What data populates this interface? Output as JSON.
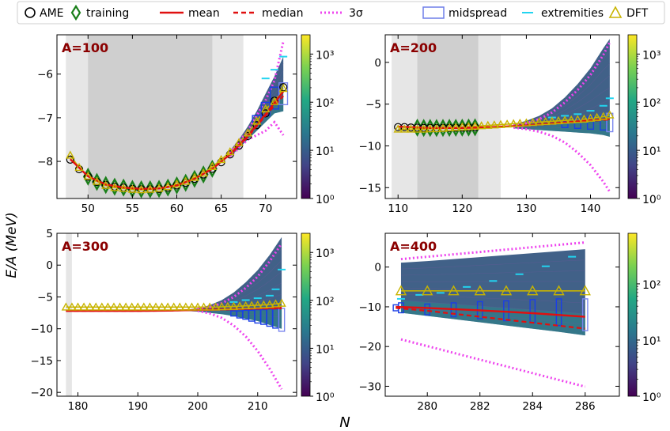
{
  "colors": {
    "ame": "#000000",
    "training": "#1a7f1a",
    "mean": "#e01010",
    "median": "#e01010",
    "sigma3": "#ee44ee",
    "midspread": "#1a3ee6",
    "extremities": "#22d4f0",
    "dft": "#c8b400",
    "panelLabel": "#8b0000"
  },
  "legend": {
    "items": [
      {
        "key": "ame",
        "label": "AME"
      },
      {
        "key": "training",
        "label": "training"
      },
      {
        "key": "mean",
        "label": "mean"
      },
      {
        "key": "median",
        "label": "median"
      },
      {
        "key": "sigma3",
        "label": "3σ"
      },
      {
        "key": "midspread",
        "label": "midspread"
      },
      {
        "key": "extremities",
        "label": "extremities"
      },
      {
        "key": "dft",
        "label": "DFT"
      }
    ]
  },
  "figure": {
    "ylabel": "E/A (MeV)",
    "xlabel": "N"
  },
  "chart_data": [
    {
      "type": "line",
      "label": "A=100",
      "xlim": [
        46.5,
        73.5
      ],
      "ylim": [
        -8.85,
        -5.1
      ],
      "xticks": [
        50,
        55,
        60,
        65,
        70
      ],
      "yticks": [
        -8,
        -7,
        -6
      ],
      "shade_light": [
        47.5,
        67.5
      ],
      "shade_dark": [
        50,
        64
      ],
      "colorbar": {
        "ticks": [
          "10⁰",
          "10¹",
          "10²",
          "10³"
        ],
        "max_exp": 3.4
      },
      "ame": {
        "x": [
          48,
          49,
          50,
          51,
          52,
          53,
          54,
          55,
          56,
          57,
          58,
          59,
          60,
          61,
          62,
          63,
          64,
          65,
          66,
          67,
          68,
          69,
          70,
          71,
          72
        ],
        "y": [
          -7.96,
          -8.18,
          -8.35,
          -8.47,
          -8.54,
          -8.58,
          -8.6,
          -8.63,
          -8.64,
          -8.64,
          -8.63,
          -8.6,
          -8.55,
          -8.49,
          -8.4,
          -8.3,
          -8.17,
          -8.02,
          -7.84,
          -7.64,
          -7.42,
          -7.17,
          -6.9,
          -6.61,
          -6.3
        ]
      },
      "training": {
        "x": [
          50,
          51,
          52,
          53,
          54,
          55,
          56,
          57,
          58,
          59,
          60,
          61,
          62,
          63,
          64
        ],
        "y": [
          -8.35,
          -8.47,
          -8.54,
          -8.58,
          -8.6,
          -8.63,
          -8.64,
          -8.64,
          -8.63,
          -8.6,
          -8.55,
          -8.49,
          -8.4,
          -8.3,
          -8.17
        ]
      },
      "mean": {
        "x": [
          48,
          50,
          52,
          54,
          56,
          58,
          60,
          62,
          64,
          66,
          68,
          70,
          72
        ],
        "y": [
          -7.95,
          -8.34,
          -8.53,
          -8.6,
          -8.63,
          -8.62,
          -8.55,
          -8.4,
          -8.17,
          -7.84,
          -7.42,
          -6.92,
          -6.4
        ]
      },
      "median": {
        "x": [
          48,
          50,
          52,
          54,
          56,
          58,
          60,
          62,
          64,
          66,
          68,
          70,
          72
        ],
        "y": [
          -7.95,
          -8.34,
          -8.53,
          -8.6,
          -8.63,
          -8.62,
          -8.55,
          -8.4,
          -8.17,
          -7.85,
          -7.44,
          -6.95,
          -6.5
        ]
      },
      "sigma_upper": {
        "x": [
          66,
          67,
          68,
          69,
          70,
          71,
          72
        ],
        "y": [
          -7.8,
          -7.55,
          -7.3,
          -6.95,
          -6.6,
          -6.15,
          -5.25
        ]
      },
      "sigma_lower": {
        "x": [
          66,
          67,
          68,
          69,
          70,
          71,
          72
        ],
        "y": [
          -7.88,
          -7.7,
          -7.5,
          -7.4,
          -7.3,
          -7.1,
          -7.4
        ]
      },
      "band": {
        "x": [
          66,
          67,
          68,
          69,
          70,
          71,
          72
        ],
        "upper": [
          -7.75,
          -7.5,
          -7.2,
          -6.85,
          -6.45,
          -6.05,
          -5.6
        ],
        "lower": [
          -7.9,
          -7.7,
          -7.5,
          -7.3,
          -7.1,
          -6.9,
          -6.85
        ]
      },
      "midspread": [
        {
          "x": 69,
          "lo": -7.1,
          "hi": -6.95
        },
        {
          "x": 70,
          "lo": -6.95,
          "hi": -6.65
        },
        {
          "x": 71,
          "lo": -6.8,
          "hi": -6.3
        },
        {
          "x": 72,
          "lo": -6.7,
          "hi": -6.2
        }
      ],
      "extremities": {
        "x": [
          70,
          71,
          72
        ],
        "y": [
          -6.1,
          -5.9,
          -5.6
        ]
      },
      "dft": {
        "x": [
          48,
          49,
          50,
          51,
          52,
          53,
          54,
          55,
          56,
          57,
          58,
          59,
          60,
          61,
          62,
          63,
          64,
          65,
          66,
          67,
          68,
          69,
          70,
          71,
          72
        ],
        "y": [
          -7.86,
          -8.14,
          -8.34,
          -8.46,
          -8.55,
          -8.6,
          -8.62,
          -8.64,
          -8.65,
          -8.64,
          -8.62,
          -8.58,
          -8.52,
          -8.46,
          -8.37,
          -8.27,
          -8.12,
          -7.96,
          -7.78,
          -7.57,
          -7.35,
          -7.08,
          -6.8,
          -6.63,
          -6.33
        ]
      }
    },
    {
      "type": "line",
      "label": "A=200",
      "xlim": [
        108,
        144.5
      ],
      "ylim": [
        -16.3,
        3.3
      ],
      "xticks": [
        110,
        120,
        130,
        140
      ],
      "yticks": [
        -15,
        -10,
        -5,
        0
      ],
      "shade_light": [
        109,
        126
      ],
      "shade_dark": [
        113,
        122.5
      ],
      "colorbar": {
        "ticks": [
          "10⁰",
          "10¹",
          "10²",
          "10³"
        ],
        "max_exp": 3.4
      },
      "ame": {
        "x": [
          110,
          111,
          112,
          113,
          114,
          115,
          116,
          117,
          118,
          119,
          120,
          121,
          122
        ],
        "y": [
          -7.75,
          -7.75,
          -7.8,
          -7.82,
          -7.85,
          -7.85,
          -7.86,
          -7.85,
          -7.84,
          -7.83,
          -7.82,
          -7.8,
          -7.78
        ]
      },
      "training": {
        "x": [
          113,
          114,
          115,
          116,
          117,
          118,
          119,
          120,
          121,
          122
        ],
        "y": [
          -7.82,
          -7.85,
          -7.85,
          -7.86,
          -7.85,
          -7.84,
          -7.83,
          -7.82,
          -7.8,
          -7.78
        ]
      },
      "mean": {
        "x": [
          110,
          115,
          120,
          125,
          130,
          135,
          140,
          143
        ],
        "y": [
          -7.7,
          -7.85,
          -7.85,
          -7.75,
          -7.55,
          -7.25,
          -6.95,
          -6.75
        ]
      },
      "median": {
        "x": [
          110,
          115,
          120,
          125,
          130,
          135,
          140,
          143
        ],
        "y": [
          -7.7,
          -7.85,
          -7.85,
          -7.75,
          -7.55,
          -7.25,
          -7.0,
          -6.85
        ]
      },
      "sigma_upper": {
        "x": [
          128,
          130,
          132,
          134,
          136,
          138,
          140,
          142,
          143
        ],
        "y": [
          -7.6,
          -7.3,
          -6.8,
          -6.0,
          -4.8,
          -3.3,
          -1.5,
          0.9,
          2.4
        ]
      },
      "sigma_lower": {
        "x": [
          128,
          130,
          132,
          134,
          136,
          138,
          140,
          142,
          143
        ],
        "y": [
          -7.8,
          -8.0,
          -8.3,
          -8.8,
          -9.6,
          -10.8,
          -12.3,
          -14.3,
          -15.5
        ]
      },
      "band": {
        "x": [
          128,
          130,
          132,
          134,
          136,
          138,
          140,
          142,
          143
        ],
        "upper": [
          -7.4,
          -7.0,
          -6.4,
          -5.5,
          -4.2,
          -2.6,
          -0.7,
          1.7,
          2.8
        ],
        "lower": [
          -7.9,
          -8.0,
          -8.1,
          -8.2,
          -8.3,
          -8.4,
          -8.5,
          -8.7,
          -8.9
        ]
      },
      "midspread": [
        {
          "x": 136,
          "lo": -7.8,
          "hi": -7.1
        },
        {
          "x": 138,
          "lo": -7.9,
          "hi": -6.8
        },
        {
          "x": 140,
          "lo": -8.0,
          "hi": -6.5
        },
        {
          "x": 142,
          "lo": -8.1,
          "hi": -6.3
        },
        {
          "x": 143,
          "lo": -8.3,
          "hi": -6.1
        }
      ],
      "extremities": {
        "x": [
          134,
          136,
          138,
          140,
          142,
          143
        ],
        "y": [
          -6.6,
          -6.4,
          -6.2,
          -5.8,
          -5.2,
          -4.3
        ]
      },
      "dft": {
        "x": [
          110,
          111,
          112,
          113,
          114,
          115,
          116,
          117,
          118,
          119,
          120,
          121,
          122,
          123,
          124,
          125,
          126,
          127,
          128,
          129,
          130,
          131,
          132,
          133,
          134,
          135,
          136,
          137,
          138,
          139,
          140,
          141,
          142,
          143
        ],
        "y": [
          -8.0,
          -8.0,
          -8.0,
          -8.0,
          -8.0,
          -7.95,
          -7.95,
          -7.9,
          -7.85,
          -7.8,
          -7.75,
          -7.7,
          -7.65,
          -7.6,
          -7.55,
          -7.5,
          -7.45,
          -7.4,
          -7.35,
          -7.3,
          -7.25,
          -7.2,
          -7.15,
          -7.1,
          -7.05,
          -7.0,
          -6.95,
          -6.9,
          -6.85,
          -6.8,
          -6.7,
          -6.6,
          -6.5,
          -6.3
        ]
      }
    },
    {
      "type": "line",
      "label": "A=300",
      "xlim": [
        176.5,
        216.5
      ],
      "ylim": [
        -20.6,
        5.0
      ],
      "xticks": [
        180,
        190,
        200,
        210
      ],
      "yticks": [
        -20,
        -15,
        -10,
        -5,
        0,
        5
      ],
      "shade_light": [
        178,
        179
      ],
      "shade_dark": null,
      "colorbar": {
        "ticks": [
          "10⁰",
          "10¹",
          "10²",
          "10³"
        ],
        "max_exp": 3.4
      },
      "ame": null,
      "training": null,
      "mean": {
        "x": [
          178,
          185,
          190,
          195,
          200,
          205,
          210,
          214
        ],
        "y": [
          -7.2,
          -7.2,
          -7.2,
          -7.15,
          -7.05,
          -6.95,
          -6.8,
          -6.7
        ]
      },
      "median": {
        "x": [
          178,
          185,
          190,
          195,
          200,
          205,
          210,
          214
        ],
        "y": [
          -7.2,
          -7.2,
          -7.2,
          -7.15,
          -7.05,
          -6.95,
          -6.85,
          -6.8
        ]
      },
      "sigma_upper": {
        "x": [
          200,
          202,
          204,
          206,
          208,
          210,
          212,
          214
        ],
        "y": [
          -6.9,
          -6.6,
          -6.0,
          -5.0,
          -3.6,
          -1.8,
          0.6,
          3.4
        ]
      },
      "sigma_lower": {
        "x": [
          200,
          202,
          204,
          206,
          208,
          210,
          212,
          214
        ],
        "y": [
          -7.2,
          -7.6,
          -8.3,
          -9.5,
          -11.2,
          -13.5,
          -16.3,
          -19.5
        ]
      },
      "band": {
        "x": [
          198,
          200,
          202,
          204,
          206,
          208,
          210,
          212,
          214
        ],
        "upper": [
          -7.0,
          -6.8,
          -6.3,
          -5.5,
          -4.3,
          -2.7,
          -0.8,
          1.6,
          4.4
        ],
        "lower": [
          -7.2,
          -7.3,
          -7.5,
          -7.7,
          -8.0,
          -8.4,
          -8.8,
          -9.4,
          -10.0
        ]
      },
      "midspread": [
        {
          "x": 206,
          "lo": -8.0,
          "hi": -7.2
        },
        {
          "x": 207,
          "lo": -8.3,
          "hi": -7.2
        },
        {
          "x": 208,
          "lo": -8.5,
          "hi": -7.1
        },
        {
          "x": 209,
          "lo": -8.8,
          "hi": -7.1
        },
        {
          "x": 210,
          "lo": -9.1,
          "hi": -7.0
        },
        {
          "x": 211,
          "lo": -9.3,
          "hi": -7.0
        },
        {
          "x": 212,
          "lo": -9.6,
          "hi": -6.9
        },
        {
          "x": 213,
          "lo": -9.9,
          "hi": -6.9
        },
        {
          "x": 214,
          "lo": -10.4,
          "hi": -6.8
        }
      ],
      "extremities": {
        "x": [
          206,
          208,
          210,
          212,
          213,
          214
        ],
        "y": [
          -5.8,
          -5.5,
          -5.2,
          -4.8,
          -3.8,
          -0.7
        ]
      },
      "dft": {
        "x": [
          178,
          179,
          180,
          181,
          182,
          183,
          184,
          185,
          186,
          187,
          188,
          189,
          190,
          191,
          192,
          193,
          194,
          195,
          196,
          197,
          198,
          199,
          200,
          201,
          202,
          203,
          204,
          205,
          206,
          207,
          208,
          209,
          210,
          211,
          212,
          213,
          214
        ],
        "y": [
          -6.6,
          -6.6,
          -6.6,
          -6.6,
          -6.6,
          -6.6,
          -6.6,
          -6.6,
          -6.6,
          -6.6,
          -6.6,
          -6.6,
          -6.6,
          -6.6,
          -6.6,
          -6.6,
          -6.6,
          -6.6,
          -6.6,
          -6.6,
          -6.6,
          -6.6,
          -6.6,
          -6.6,
          -6.6,
          -6.6,
          -6.55,
          -6.5,
          -6.5,
          -6.45,
          -6.4,
          -6.35,
          -6.3,
          -6.25,
          -6.2,
          -6.1,
          -6.0
        ]
      }
    },
    {
      "type": "line",
      "label": "A=400",
      "xlim": [
        278.4,
        287.3
      ],
      "ylim": [
        -32.5,
        8.5
      ],
      "xticks": [
        280,
        282,
        284,
        286
      ],
      "yticks": [
        -30,
        -20,
        -10,
        0
      ],
      "shade_light": null,
      "shade_dark": null,
      "colorbar": {
        "ticks": [
          "10⁰",
          "10¹",
          "10²"
        ],
        "max_exp": 2.9
      },
      "ame": null,
      "training": null,
      "mean": {
        "x": [
          278.8,
          280,
          282,
          284,
          286
        ],
        "y": [
          -10.0,
          -10.3,
          -10.9,
          -11.6,
          -12.5
        ]
      },
      "median": {
        "x": [
          278.8,
          280,
          282,
          284,
          286
        ],
        "y": [
          -10.3,
          -11.0,
          -12.5,
          -14.0,
          -15.5
        ]
      },
      "sigma_upper": {
        "x": [
          279,
          280,
          281,
          282,
          283,
          284,
          285,
          286
        ],
        "y": [
          2.0,
          2.6,
          3.2,
          3.8,
          4.4,
          5.0,
          5.6,
          6.2
        ]
      },
      "sigma_lower": {
        "x": [
          279,
          280,
          281,
          282,
          283,
          284,
          285,
          286
        ],
        "y": [
          -18.2,
          -19.9,
          -21.6,
          -23.3,
          -25.0,
          -26.7,
          -28.4,
          -30.1
        ]
      },
      "band": {
        "x": [
          279,
          280,
          281,
          282,
          283,
          284,
          285,
          286
        ],
        "upper": [
          1.1,
          1.5,
          2.0,
          2.5,
          3.0,
          3.5,
          4.0,
          4.5
        ],
        "lower": [
          -11.5,
          -12.3,
          -13.1,
          -13.9,
          -14.7,
          -15.5,
          -16.3,
          -17.2
        ]
      },
      "midspread": [
        {
          "x": 278.8,
          "lo": -11.0,
          "hi": -9.5
        },
        {
          "x": 279,
          "lo": -11.5,
          "hi": -9.0
        },
        {
          "x": 280,
          "lo": -12.0,
          "hi": -9.3
        },
        {
          "x": 281,
          "lo": -12.5,
          "hi": -9.0
        },
        {
          "x": 282,
          "lo": -13.0,
          "hi": -8.7
        },
        {
          "x": 283,
          "lo": -13.5,
          "hi": -8.5
        },
        {
          "x": 284,
          "lo": -14.0,
          "hi": -8.2
        },
        {
          "x": 285,
          "lo": -14.7,
          "hi": -8.0
        },
        {
          "x": 286,
          "lo": -16.0,
          "hi": -8.0
        }
      ],
      "extremities": {
        "x": [
          279,
          279.7,
          280.5,
          281.5,
          282.5,
          283.5,
          284.5,
          285.5
        ],
        "y": [
          -8.0,
          -7.0,
          -6.5,
          -5.0,
          -3.5,
          -1.8,
          0.2,
          2.6
        ]
      },
      "dft": {
        "x": [
          279,
          280,
          281,
          282,
          283,
          284,
          285,
          286
        ],
        "y": [
          -6.0,
          -6.0,
          -6.0,
          -6.0,
          -6.0,
          -6.0,
          -6.0,
          -6.0
        ]
      }
    }
  ]
}
